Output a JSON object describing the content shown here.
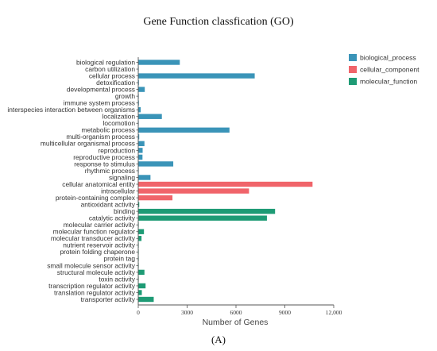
{
  "chart_data": {
    "type": "bar",
    "orientation": "horizontal",
    "title": "Gene Function classfication (GO)",
    "xlabel": "Number of Genes",
    "ylabel": "",
    "xlim": [
      0,
      12000
    ],
    "x_ticks": [
      "0",
      "3000",
      "6000",
      "9000",
      "12,000"
    ],
    "x_tick_values": [
      0,
      3000,
      6000,
      9000,
      12000
    ],
    "grid": false,
    "legend_position": "top-right",
    "series": [
      {
        "name": "biological_process",
        "color": "#3a94b8"
      },
      {
        "name": "cellular_component",
        "color": "#f0646a"
      },
      {
        "name": "molecular_function",
        "color": "#1e9b75"
      }
    ],
    "bars": [
      {
        "label": "biological regulation",
        "value": 2550,
        "series": 0
      },
      {
        "label": "carbon utilization",
        "value": 20,
        "series": 0
      },
      {
        "label": "cellular process",
        "value": 7150,
        "series": 0
      },
      {
        "label": "detoxification",
        "value": 40,
        "series": 0
      },
      {
        "label": "developmental process",
        "value": 400,
        "series": 0
      },
      {
        "label": "growth",
        "value": 30,
        "series": 0
      },
      {
        "label": "immune system process",
        "value": 40,
        "series": 0
      },
      {
        "label": "interspecies interaction between organisms",
        "value": 150,
        "series": 0
      },
      {
        "label": "localization",
        "value": 1450,
        "series": 0
      },
      {
        "label": "locomotion",
        "value": 10,
        "series": 0
      },
      {
        "label": "metabolic process",
        "value": 5600,
        "series": 0
      },
      {
        "label": "multi-organism process",
        "value": 60,
        "series": 0
      },
      {
        "label": "multicellular organismal process",
        "value": 380,
        "series": 0
      },
      {
        "label": "reproduction",
        "value": 270,
        "series": 0
      },
      {
        "label": "reproductive process",
        "value": 260,
        "series": 0
      },
      {
        "label": "response to stimulus",
        "value": 2150,
        "series": 0
      },
      {
        "label": "rhythmic process",
        "value": 10,
        "series": 0
      },
      {
        "label": "signaling",
        "value": 750,
        "series": 0
      },
      {
        "label": "cellular anatomical entity",
        "value": 10700,
        "series": 1
      },
      {
        "label": "intracellular",
        "value": 6800,
        "series": 1
      },
      {
        "label": "protein-containing complex",
        "value": 2100,
        "series": 1
      },
      {
        "label": "antioxidant activity",
        "value": 60,
        "series": 2
      },
      {
        "label": "binding",
        "value": 8400,
        "series": 2
      },
      {
        "label": "catalytic activity",
        "value": 7900,
        "series": 2
      },
      {
        "label": "molecular carrier activity",
        "value": 10,
        "series": 2
      },
      {
        "label": "molecular function regulator",
        "value": 350,
        "series": 2
      },
      {
        "label": "molecular transducer activity",
        "value": 200,
        "series": 2
      },
      {
        "label": "nutrient reservoir activity",
        "value": 10,
        "series": 2
      },
      {
        "label": "protein folding chaperone",
        "value": 20,
        "series": 2
      },
      {
        "label": "protein tag",
        "value": 5,
        "series": 2
      },
      {
        "label": "small molecule sensor activity",
        "value": 10,
        "series": 2
      },
      {
        "label": "structural molecule activity",
        "value": 380,
        "series": 2
      },
      {
        "label": "toxin activity",
        "value": 10,
        "series": 2
      },
      {
        "label": "transcription regulator activity",
        "value": 450,
        "series": 2
      },
      {
        "label": "translation regulator activity",
        "value": 220,
        "series": 2
      },
      {
        "label": "transporter activity",
        "value": 950,
        "series": 2
      }
    ]
  },
  "caption": "(A)"
}
